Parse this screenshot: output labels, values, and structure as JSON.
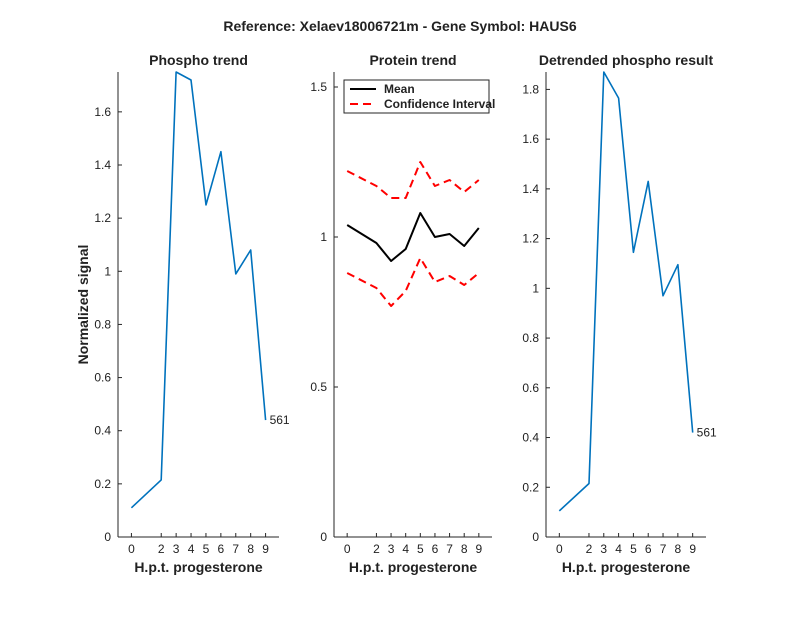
{
  "figure": {
    "suptitle": "Reference:  Xelaev18006721m - Gene Symbol:  HAUS6"
  },
  "chart_data": [
    {
      "type": "line",
      "title": "Phospho trend",
      "xlabel": "H.p.t. progesterone",
      "ylabel": "Normalized signal",
      "x": [
        0,
        2,
        3,
        4,
        5,
        6,
        7,
        8,
        9
      ],
      "xtick_labels": [
        "0",
        "2",
        "3",
        "4",
        "5",
        "6",
        "7",
        "8",
        "9"
      ],
      "ylim": [
        0,
        1.75
      ],
      "yticks": [
        0,
        0.2,
        0.4,
        0.6,
        0.8,
        1,
        1.2,
        1.4,
        1.6
      ],
      "series": [
        {
          "name": "Phospho",
          "color": "#0072BD",
          "dashed": false,
          "values": [
            0.11,
            0.215,
            1.75,
            1.72,
            1.25,
            1.45,
            0.99,
            1.08,
            0.44
          ]
        }
      ],
      "point_label": {
        "text": "561",
        "index": 8
      }
    },
    {
      "type": "line",
      "title": "Protein trend",
      "xlabel": "H.p.t. progesterone",
      "ylabel": "",
      "x": [
        0,
        2,
        3,
        4,
        5,
        6,
        7,
        8,
        9
      ],
      "xtick_labels": [
        "0",
        "2",
        "3",
        "4",
        "5",
        "6",
        "7",
        "8",
        "9"
      ],
      "ylim": [
        0,
        1.55
      ],
      "yticks": [
        0,
        0.5,
        1,
        1.5
      ],
      "ytick_labels": [
        "0",
        "0.5",
        "1",
        "1.5"
      ],
      "series": [
        {
          "name": "Mean",
          "color": "#000000",
          "dashed": false,
          "values": [
            1.04,
            0.98,
            0.92,
            0.96,
            1.08,
            1.0,
            1.01,
            0.97,
            1.03
          ]
        },
        {
          "name": "Confidence Interval",
          "color": "#FF0000",
          "dashed": true,
          "values": [
            1.22,
            1.17,
            1.13,
            1.13,
            1.25,
            1.17,
            1.19,
            1.15,
            1.19
          ]
        },
        {
          "name": "Confidence Interval lower",
          "color": "#FF0000",
          "dashed": true,
          "legend": false,
          "values": [
            0.88,
            0.83,
            0.77,
            0.82,
            0.93,
            0.85,
            0.87,
            0.84,
            0.88
          ]
        }
      ],
      "legend": {
        "position": "top-left",
        "entries": [
          {
            "label": "Mean",
            "color": "#000000",
            "dashed": false
          },
          {
            "label": "Confidence Interval",
            "color": "#FF0000",
            "dashed": true
          }
        ]
      }
    },
    {
      "type": "line",
      "title": "Detrended phospho result",
      "xlabel": "H.p.t. progesterone",
      "ylabel": "",
      "x": [
        0,
        2,
        3,
        4,
        5,
        6,
        7,
        8,
        9
      ],
      "xtick_labels": [
        "0",
        "2",
        "3",
        "4",
        "5",
        "6",
        "7",
        "8",
        "9"
      ],
      "ylim": [
        0,
        1.87
      ],
      "yticks": [
        0,
        0.2,
        0.4,
        0.6,
        0.8,
        1,
        1.2,
        1.4,
        1.6,
        1.8
      ],
      "series": [
        {
          "name": "Detrended",
          "color": "#0072BD",
          "dashed": false,
          "values": [
            0.105,
            0.215,
            1.87,
            1.765,
            1.145,
            1.43,
            0.97,
            1.095,
            0.42
          ]
        }
      ],
      "point_label": {
        "text": "561",
        "index": 8
      }
    }
  ]
}
